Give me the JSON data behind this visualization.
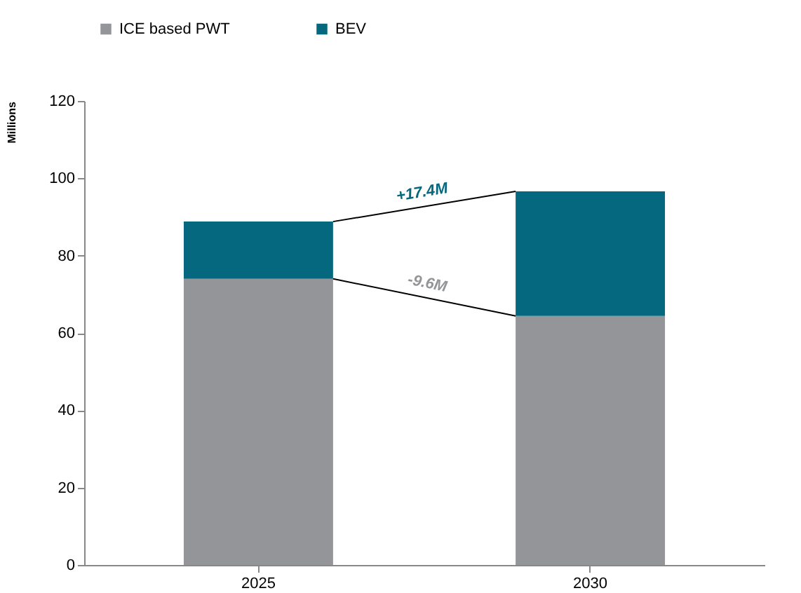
{
  "chart_data": {
    "type": "bar",
    "stacked": true,
    "ylabel": "Millions",
    "categories": [
      "2025",
      "2030"
    ],
    "series": [
      {
        "name": "ICE based PWT",
        "color": "#939598",
        "values": [
          74.0,
          64.4
        ]
      },
      {
        "name": "BEV",
        "color": "#06687f",
        "values": [
          14.8,
          32.2
        ]
      }
    ],
    "ylim": [
      0,
      120
    ],
    "yticks": [
      0,
      20,
      40,
      60,
      80,
      100,
      120
    ],
    "grid": false,
    "legend": "top left",
    "annotations": [
      "+17.4M",
      "-9.6M"
    ]
  }
}
